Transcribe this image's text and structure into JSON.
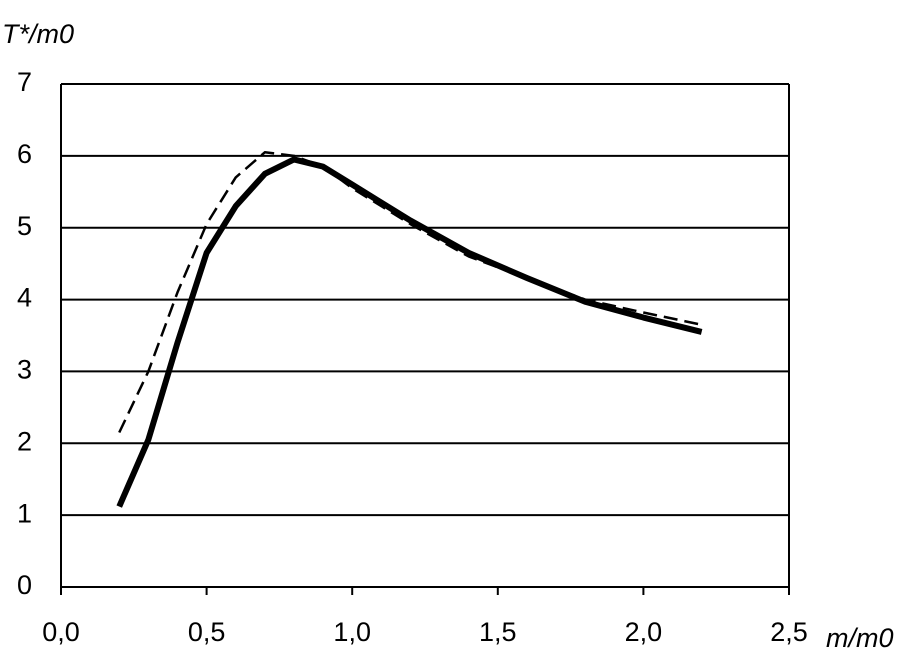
{
  "chart_data": {
    "type": "line",
    "x_label": "m/m0",
    "y_label": "T*/m0",
    "x": [
      0.2,
      0.3,
      0.4,
      0.5,
      0.6,
      0.7,
      0.8,
      0.9,
      1.0,
      1.2,
      1.4,
      1.6,
      1.8,
      2.0,
      2.2
    ],
    "series": [
      {
        "color": "#000000",
        "style": "solid",
        "values": [
          1.12,
          2.05,
          3.4,
          4.65,
          5.3,
          5.75,
          5.95,
          5.85,
          5.6,
          5.1,
          4.65,
          4.3,
          3.97,
          3.75,
          3.55
        ]
      },
      {
        "color": "#000000",
        "style": "dashed",
        "values": [
          2.15,
          3.0,
          4.1,
          5.05,
          5.7,
          6.05,
          6.0,
          5.85,
          5.55,
          5.05,
          4.6,
          4.3,
          4.0,
          3.82,
          3.65
        ]
      }
    ],
    "xlim": [
      0,
      2.5
    ],
    "xticks": [
      {
        "value": 0,
        "label": "0,0"
      },
      {
        "value": 0.5,
        "label": "0,5"
      },
      {
        "value": 1.0,
        "label": "1,0"
      },
      {
        "value": 1.5,
        "label": "1,5"
      },
      {
        "value": 2.0,
        "label": "2,0"
      },
      {
        "value": 2.5,
        "label": "2,5"
      }
    ],
    "ylim": [
      0,
      7
    ],
    "yticks": [
      0,
      1,
      2,
      3,
      4,
      5,
      6,
      7
    ],
    "grid": true
  }
}
